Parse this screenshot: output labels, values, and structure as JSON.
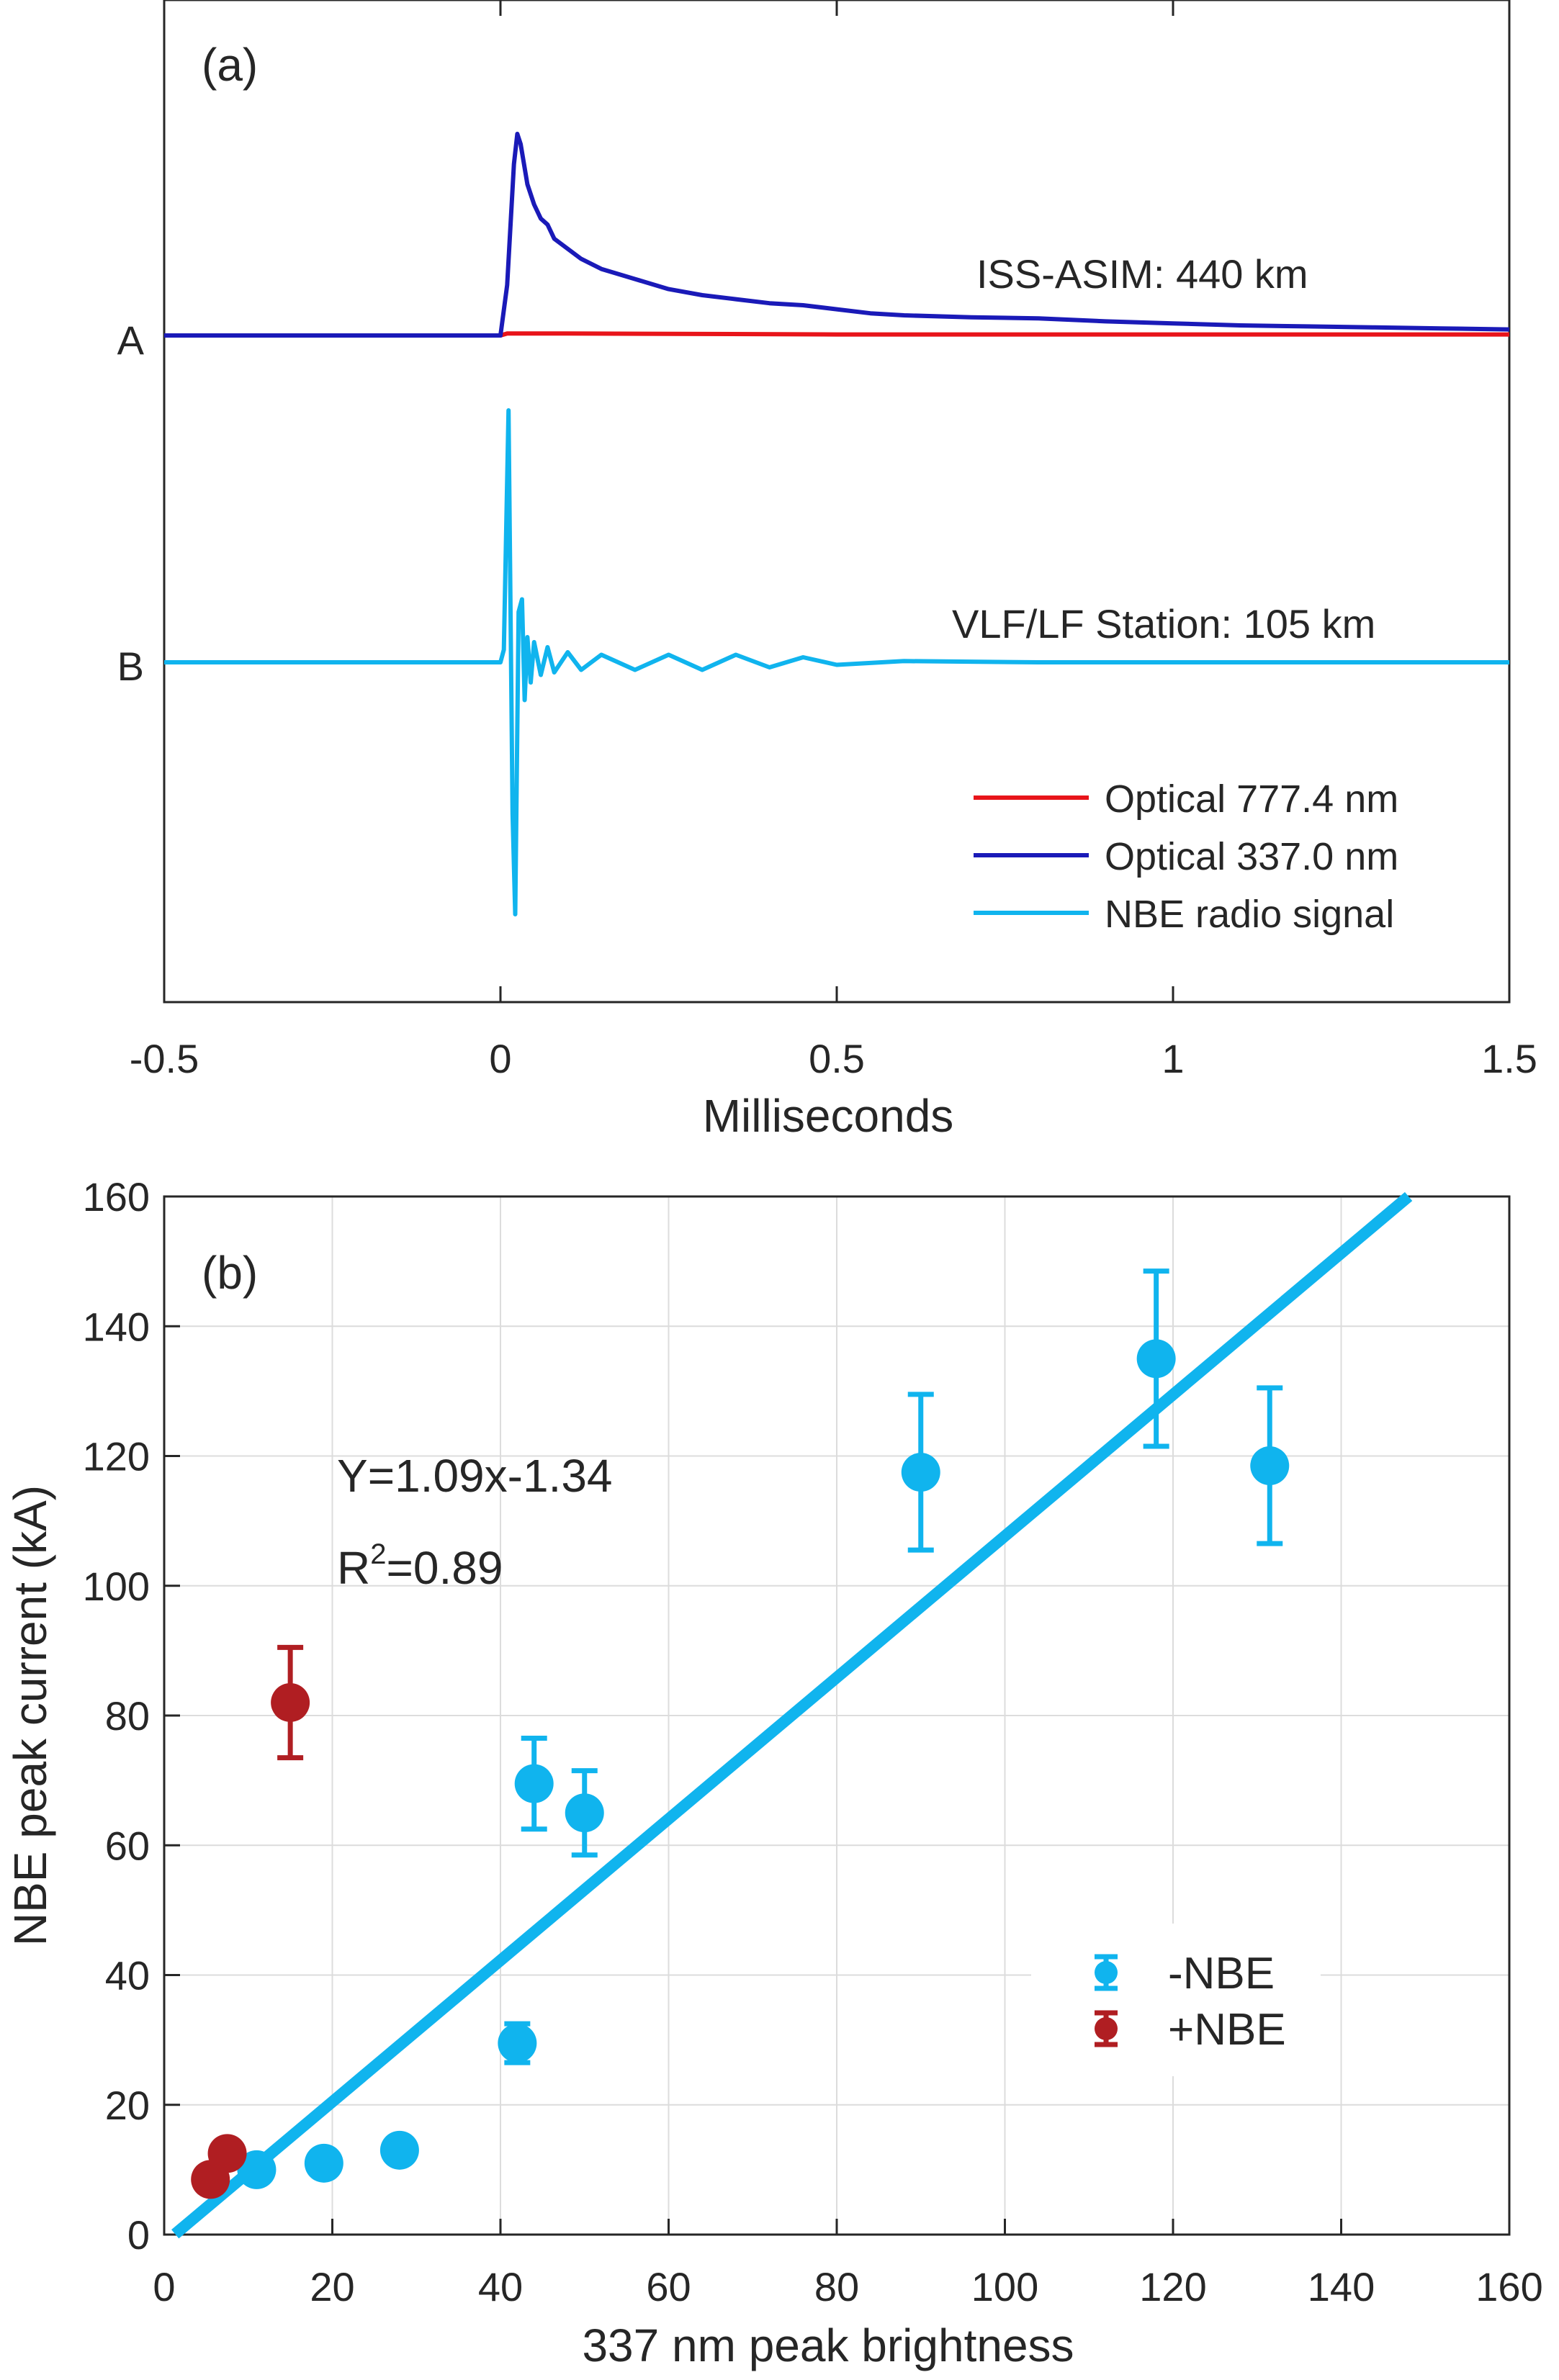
{
  "colors": {
    "red": "#e8141a",
    "darkblue": "#1a1ab8",
    "lightblue": "#10b4ee",
    "positive": "#b01e22",
    "grid": "#dcdcdc",
    "axis": "#262626"
  },
  "chart_data": [
    {
      "type": "line",
      "panel_label": "(a)",
      "xlabel": "Milliseconds",
      "xlim": [
        -0.5,
        1.5
      ],
      "xticks": [
        -0.5,
        0,
        0.5,
        1,
        1.5
      ],
      "xtick_labels": [
        "-0.5",
        "0",
        "0.5",
        "1",
        "1.5"
      ],
      "trace_labels": [
        "A",
        "B"
      ],
      "annotations": [
        "ISS-ASIM: 440 km",
        "VLF/LF Station: 105 km"
      ],
      "legend": [
        "Optical 777.4 nm",
        "Optical 337.0 nm",
        "NBE radio signal"
      ],
      "series": [
        {
          "name": "Optical 777.4 nm",
          "trace": "A",
          "x": [
            -0.5,
            0.0,
            0.01,
            0.1,
            0.5,
            1.0,
            1.5
          ],
          "y": [
            0,
            0,
            0.01,
            0.01,
            0.005,
            0.005,
            0.005
          ]
        },
        {
          "name": "Optical 337.0 nm",
          "trace": "A",
          "x": [
            -0.5,
            0.0,
            0.01,
            0.02,
            0.025,
            0.03,
            0.04,
            0.05,
            0.06,
            0.07,
            0.08,
            0.1,
            0.12,
            0.15,
            0.2,
            0.25,
            0.3,
            0.35,
            0.4,
            0.45,
            0.5,
            0.55,
            0.6,
            0.7,
            0.8,
            0.9,
            1.0,
            1.1,
            1.2,
            1.3,
            1.4,
            1.5
          ],
          "y": [
            0,
            0,
            0.25,
            0.85,
            1.0,
            0.95,
            0.75,
            0.65,
            0.58,
            0.55,
            0.48,
            0.43,
            0.38,
            0.33,
            0.28,
            0.23,
            0.2,
            0.18,
            0.16,
            0.15,
            0.13,
            0.11,
            0.1,
            0.09,
            0.085,
            0.07,
            0.06,
            0.05,
            0.045,
            0.04,
            0.035,
            0.03
          ]
        },
        {
          "name": "NBE radio signal",
          "trace": "B",
          "x": [
            -0.5,
            0.0,
            0.005,
            0.012,
            0.018,
            0.022,
            0.027,
            0.032,
            0.036,
            0.04,
            0.045,
            0.05,
            0.06,
            0.07,
            0.08,
            0.1,
            0.12,
            0.15,
            0.2,
            0.25,
            0.3,
            0.35,
            0.4,
            0.45,
            0.5,
            0.6,
            0.8,
            1.0,
            1.5
          ],
          "y": [
            0,
            0,
            0.05,
            1.0,
            -0.6,
            -1.0,
            0.2,
            0.25,
            -0.15,
            0.1,
            -0.08,
            0.08,
            -0.05,
            0.06,
            -0.04,
            0.04,
            -0.03,
            0.03,
            -0.03,
            0.03,
            -0.03,
            0.03,
            -0.02,
            0.02,
            -0.01,
            0.005,
            0,
            0,
            0
          ]
        }
      ]
    },
    {
      "type": "scatter",
      "panel_label": "(b)",
      "xlabel": "337 nm peak brightness",
      "ylabel": "NBE peak current (kA)",
      "xlim": [
        0,
        160
      ],
      "ylim": [
        0,
        160
      ],
      "xticks": [
        0,
        20,
        40,
        60,
        80,
        100,
        120,
        140,
        160
      ],
      "yticks": [
        0,
        20,
        40,
        60,
        80,
        100,
        120,
        140,
        160
      ],
      "grid": true,
      "fit": {
        "equation": "Y=1.09x-1.34",
        "r2_prefix": "R",
        "r2_exp": "2",
        "r2_value": "=0.89",
        "slope": 1.09,
        "intercept": -1.34
      },
      "legend": [
        "-NBE",
        "+NBE"
      ],
      "series": [
        {
          "name": "-NBE",
          "points": [
            {
              "x": 11,
              "y": 10,
              "err": 0
            },
            {
              "x": 19,
              "y": 11,
              "err": 0
            },
            {
              "x": 28,
              "y": 13,
              "err": 0
            },
            {
              "x": 42,
              "y": 29.5,
              "err": 3
            },
            {
              "x": 44,
              "y": 69.5,
              "err": 7
            },
            {
              "x": 50,
              "y": 65,
              "err": 6.5
            },
            {
              "x": 90,
              "y": 117.5,
              "err": 12
            },
            {
              "x": 118,
              "y": 135,
              "err": 13.5
            },
            {
              "x": 131.5,
              "y": 118.5,
              "err": 12
            }
          ]
        },
        {
          "name": "+NBE",
          "points": [
            {
              "x": 5.5,
              "y": 8.5,
              "err": 0
            },
            {
              "x": 7.5,
              "y": 12.5,
              "err": 0
            },
            {
              "x": 15,
              "y": 82,
              "err": 8.5
            }
          ]
        }
      ]
    }
  ]
}
